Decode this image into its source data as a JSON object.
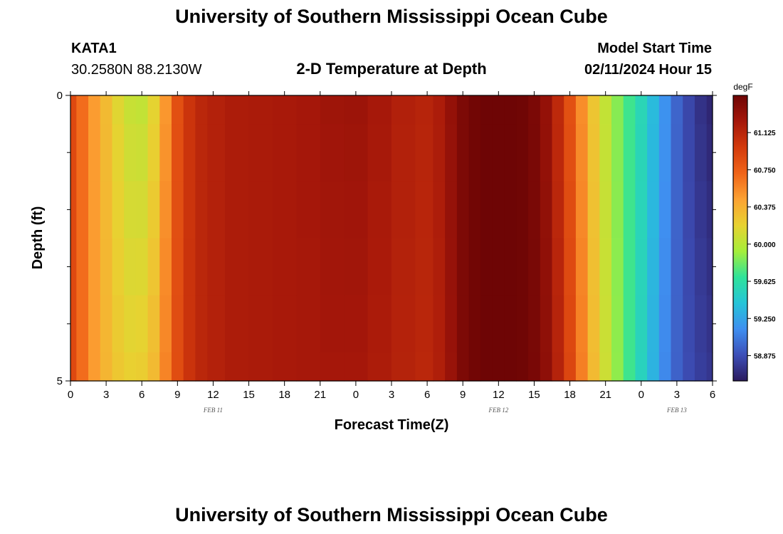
{
  "header": {
    "title": "University of Southern Mississippi Ocean Cube",
    "station": "KATA1",
    "coords": "30.2580N  88.2130W",
    "subtitle": "2-D Temperature at Depth",
    "model_start_label": "Model Start Time",
    "model_start_value": "02/11/2024 Hour 15"
  },
  "footer": {
    "title": "University of Southern Mississippi Ocean Cube"
  },
  "chart_data": {
    "type": "heatmap",
    "subtitle": "2-D Temperature at Depth",
    "xlabel": "Forecast Time(Z)",
    "ylabel": "Depth (ft)",
    "x_tick_labels": [
      "0",
      "3",
      "6",
      "9",
      "12",
      "15",
      "18",
      "21",
      "0",
      "3",
      "6",
      "9",
      "12",
      "15",
      "18",
      "21",
      "0",
      "3",
      "6"
    ],
    "x_hours": [
      0,
      3,
      6,
      9,
      12,
      15,
      18,
      21,
      24,
      27,
      30,
      33,
      36,
      39,
      42,
      45,
      48,
      51,
      54
    ],
    "date_labels": [
      {
        "label": "FEB 11",
        "hour": 12
      },
      {
        "label": "FEB 12",
        "hour": 36
      },
      {
        "label": "FEB 13",
        "hour": 51
      }
    ],
    "xlim": [
      0,
      54
    ],
    "y_tick_labels": [
      "0",
      "5"
    ],
    "ylim": [
      0,
      5
    ],
    "y_minor_ticks": [
      1,
      2,
      3,
      4
    ],
    "colorbar": {
      "unit": "degF",
      "tick_labels": [
        "61.125",
        "60.750",
        "60.375",
        "60.000",
        "59.625",
        "59.250",
        "58.875"
      ],
      "tick_values": [
        61.125,
        60.75,
        60.375,
        60.0,
        59.625,
        59.25,
        58.875
      ],
      "range": [
        58.62,
        61.5
      ],
      "colors": [
        "#2b1a5e",
        "#3d4fb8",
        "#3f8ff0",
        "#25c4d8",
        "#2fe39a",
        "#a6ee3a",
        "#e8d231",
        "#fca233",
        "#f06418",
        "#d33a0c",
        "#a5170a",
        "#6e0505"
      ]
    },
    "depth_levels": [
      0,
      0.5,
      1.5,
      2.5,
      3.5,
      4.5,
      5
    ],
    "time_hours": [
      0,
      1,
      2,
      3,
      4,
      5,
      6,
      7,
      8,
      9,
      10,
      11,
      12,
      14,
      16,
      18,
      20,
      22,
      24,
      26,
      28,
      30,
      31,
      32,
      33,
      34,
      35,
      36,
      37,
      38,
      39,
      40,
      41,
      42,
      43,
      44,
      45,
      46,
      47,
      48,
      49,
      50,
      51,
      52,
      53,
      54
    ],
    "surface_temperature": [
      60.88,
      60.68,
      60.48,
      60.32,
      60.16,
      60.06,
      60.04,
      60.18,
      60.5,
      60.84,
      61.02,
      61.12,
      61.16,
      61.2,
      61.21,
      61.22,
      61.24,
      61.27,
      61.28,
      61.23,
      61.17,
      61.14,
      61.2,
      61.32,
      61.43,
      61.48,
      61.5,
      61.5,
      61.5,
      61.49,
      61.44,
      61.32,
      61.1,
      60.84,
      60.54,
      60.26,
      60.04,
      59.86,
      59.7,
      59.55,
      59.36,
      59.16,
      58.97,
      58.84,
      58.74,
      58.68
    ],
    "deep_temperature": [
      60.88,
      60.68,
      60.48,
      60.35,
      60.25,
      60.2,
      60.22,
      60.32,
      60.58,
      60.86,
      61.03,
      61.12,
      61.16,
      61.2,
      61.21,
      61.22,
      61.23,
      61.24,
      61.24,
      61.2,
      61.15,
      61.12,
      61.18,
      61.3,
      61.43,
      61.48,
      61.5,
      61.5,
      61.5,
      61.49,
      61.45,
      61.35,
      61.15,
      60.9,
      60.6,
      60.32,
      60.08,
      59.88,
      59.7,
      59.52,
      59.32,
      59.12,
      58.96,
      58.86,
      58.8,
      58.76
    ]
  }
}
